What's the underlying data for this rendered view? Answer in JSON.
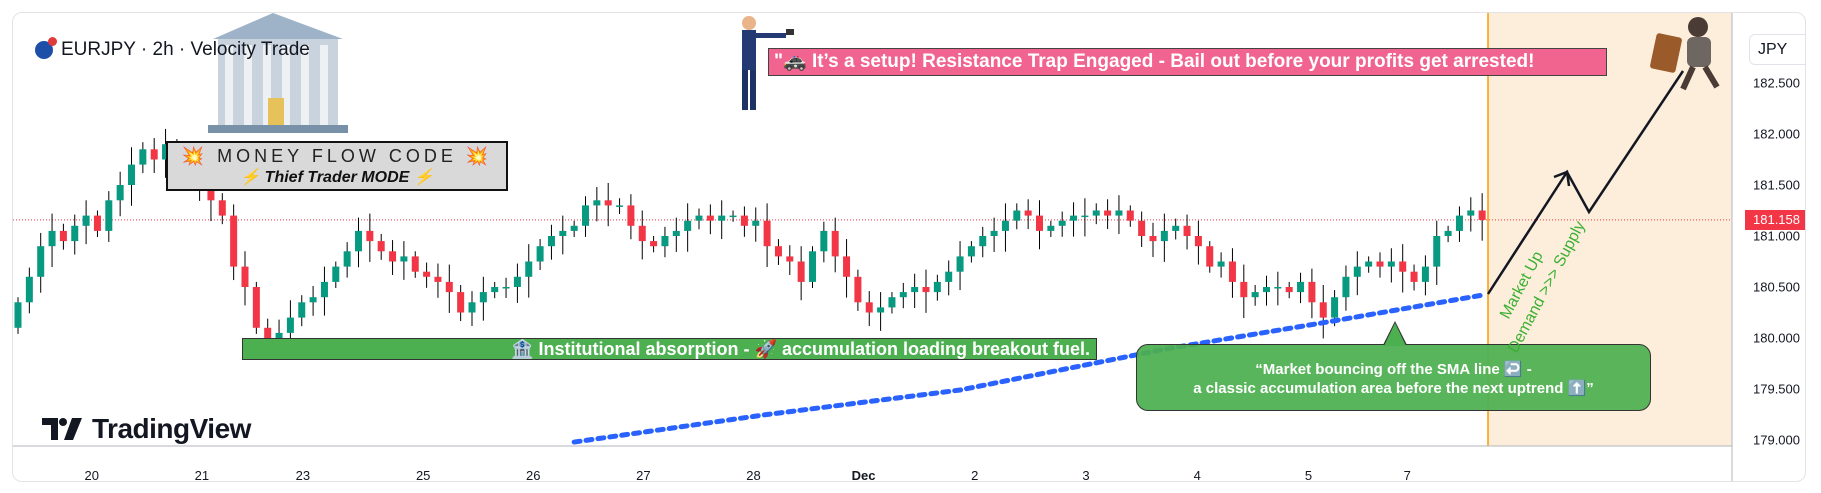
{
  "header": {
    "title": "EURJPY · 2h · Velocity Trade",
    "currency_button": "JPY"
  },
  "annotations": {
    "money_line1": "💥 MONEY FLOW CODE 💥",
    "money_line2": "⚡ Thief Trader MODE ⚡",
    "banner": "\"🚓 It’s a setup! Resistance Trap Engaged  - Bail out before your profits get arrested!",
    "institutional": "🏦 Institutional absorption - 🚀 accumulation loading breakout fuel.",
    "callout_line1": "“Market bouncing off the SMA line ↩️ -",
    "callout_line2": "a classic accumulation area before the next uptrend ⬆️”",
    "market_up": "Market Up",
    "demand_supply": "Demand >>> Supply"
  },
  "logo": {
    "text": "TradingView"
  },
  "colors": {
    "up": "#089981",
    "down": "#f23645",
    "sma": "#2962ff",
    "projection_zone": "#fdeedb",
    "marker_line": "#ff9800",
    "price_label": "#f23645"
  },
  "chart_data": {
    "type": "candlestick",
    "symbol": "EURJPY",
    "timeframe": "2h",
    "ylim": [
      178.95,
      182.9
    ],
    "y_ticks": [
      "182.500",
      "182.000",
      "181.500",
      "181.000",
      "180.500",
      "180.000",
      "179.500",
      "179.000"
    ],
    "current_price": "181.158",
    "x_ticks": [
      {
        "label": "20",
        "bar": 6.5
      },
      {
        "label": "21",
        "bar": 16.2
      },
      {
        "label": "23",
        "bar": 25.1
      },
      {
        "label": "25",
        "bar": 35.7
      },
      {
        "label": "26",
        "bar": 45.4
      },
      {
        "label": "27",
        "bar": 55.1
      },
      {
        "label": "28",
        "bar": 64.8
      },
      {
        "label": "Dec",
        "bar": 74.5
      },
      {
        "label": "2",
        "bar": 84.3
      },
      {
        "label": "3",
        "bar": 94.1
      },
      {
        "label": "4",
        "bar": 103.9
      },
      {
        "label": "5",
        "bar": 113.7
      },
      {
        "label": "7",
        "bar": 122.4
      }
    ],
    "first_open": 180.1,
    "closes": [
      180.35,
      180.6,
      180.9,
      181.05,
      180.95,
      181.1,
      181.2,
      181.05,
      181.35,
      181.5,
      181.7,
      181.85,
      181.75,
      181.9,
      181.7,
      181.6,
      181.5,
      181.35,
      181.2,
      180.7,
      180.5,
      180.1,
      179.95,
      180.05,
      180.2,
      180.35,
      180.4,
      180.55,
      180.7,
      180.85,
      181.05,
      180.95,
      180.85,
      180.75,
      180.8,
      180.65,
      180.6,
      180.55,
      180.45,
      180.25,
      180.35,
      180.45,
      180.5,
      180.5,
      180.6,
      180.75,
      180.9,
      181.0,
      181.05,
      181.1,
      181.3,
      181.35,
      181.3,
      181.3,
      181.1,
      180.95,
      180.9,
      181.0,
      181.05,
      181.15,
      181.2,
      181.15,
      181.2,
      181.2,
      181.1,
      181.15,
      180.9,
      180.8,
      180.75,
      180.55,
      180.85,
      181.05,
      180.8,
      180.6,
      180.35,
      180.25,
      180.3,
      180.4,
      180.45,
      180.5,
      180.45,
      180.55,
      180.65,
      180.8,
      180.9,
      181.0,
      181.05,
      181.15,
      181.25,
      181.2,
      181.05,
      181.1,
      181.15,
      181.2,
      181.2,
      181.25,
      181.2,
      181.25,
      181.15,
      181.0,
      180.95,
      181.05,
      181.1,
      181.0,
      180.9,
      180.7,
      180.75,
      180.55,
      180.4,
      180.45,
      180.5,
      180.5,
      180.45,
      180.55,
      180.35,
      180.2,
      180.4,
      180.6,
      180.7,
      180.75,
      180.7,
      180.75,
      180.65,
      180.55,
      180.7,
      181.0,
      181.05,
      181.2,
      181.25,
      181.158
    ],
    "sma": [
      {
        "bar": 49,
        "price": 178.98
      },
      {
        "bar": 66,
        "price": 179.25
      },
      {
        "bar": 83,
        "price": 179.49
      },
      {
        "bar": 101,
        "price": 179.89
      },
      {
        "bar": 115,
        "price": 180.15
      },
      {
        "bar": 129,
        "price": 180.42
      }
    ]
  }
}
